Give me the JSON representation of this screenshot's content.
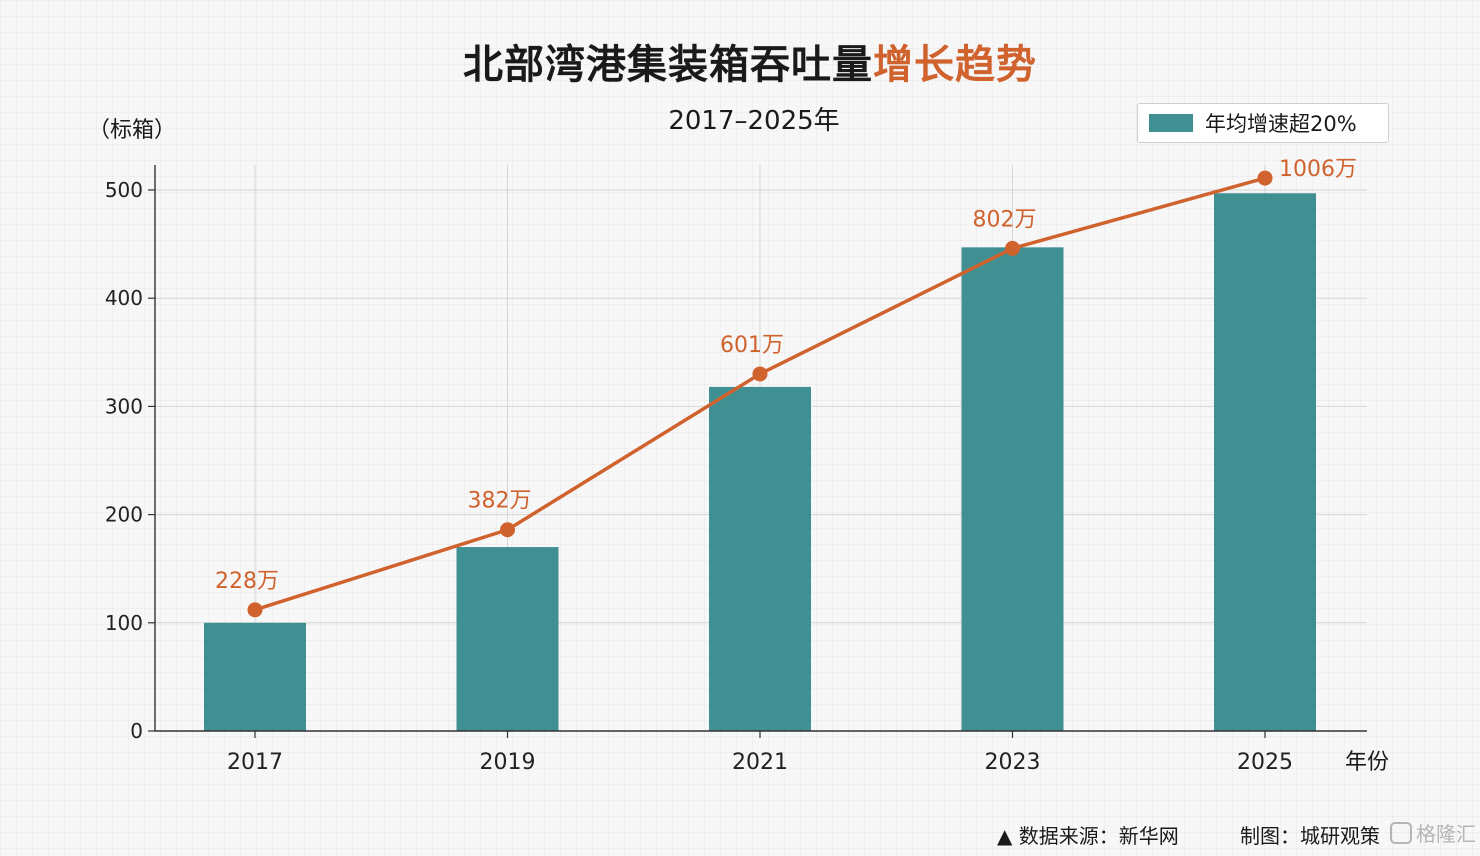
{
  "title": {
    "main": "北部湾港集装箱吞吐量",
    "accent": "增长趋势"
  },
  "subtitle": "2017–2025年",
  "y_unit": "（标箱）",
  "x_unit": "年份",
  "legend": {
    "label": "年均增速超20%"
  },
  "footer": {
    "source": "▲ 数据来源：新华网",
    "made_by": "制图：城研观策"
  },
  "watermark": "格隆汇",
  "colors": {
    "bar": "#3f8f93",
    "line": "#d0622e",
    "accent": "#d0622e"
  },
  "chart_data": {
    "type": "bar",
    "categories": [
      "2017",
      "2019",
      "2021",
      "2023",
      "2025"
    ],
    "series": [
      {
        "name": "年均增速超20%",
        "type": "bar",
        "values": [
          100,
          170,
          318,
          447,
          497
        ]
      },
      {
        "type": "line",
        "values": [
          112,
          186,
          330,
          446,
          511
        ],
        "labels": [
          "228万",
          "382万",
          "601万",
          "802万",
          "1006万"
        ]
      }
    ],
    "yticks": [
      0,
      100,
      200,
      300,
      400,
      500
    ],
    "ylim": [
      0,
      520
    ],
    "ylabel": "（标箱）",
    "xlabel": "年份",
    "grid": true,
    "legend_position": "top-right"
  }
}
